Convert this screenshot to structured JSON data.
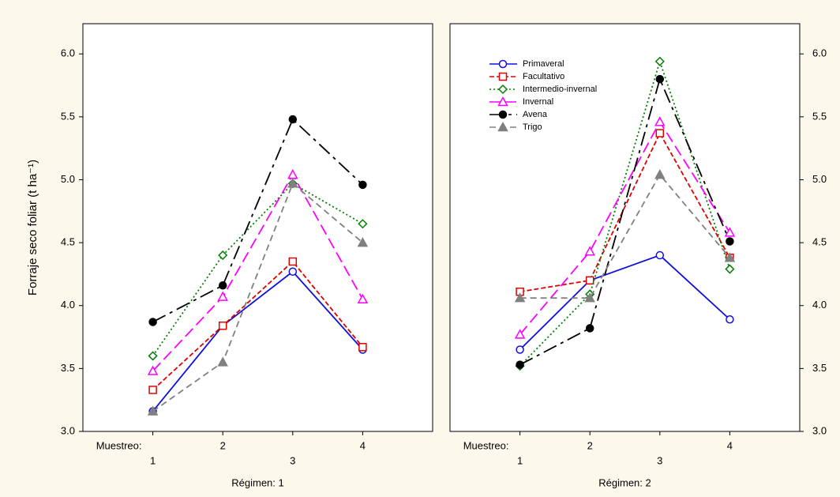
{
  "chart_data": [
    {
      "type": "line",
      "ylabel": "Forraje seco foliar  (t ha⁻¹)",
      "x_caption": "Muestreo:",
      "xlabel": "Régimen: 1",
      "x": [
        1,
        2,
        3,
        4
      ],
      "xlim": [
        0,
        5
      ],
      "xticks": [
        1,
        2,
        3,
        4
      ],
      "ylim": [
        3.0,
        6.24
      ],
      "yticks": [
        {
          "value": 3,
          "label": "3.0"
        },
        {
          "value": 3.5,
          "label": "3.5"
        },
        {
          "value": 4,
          "label": "4.0"
        },
        {
          "value": 4.5,
          "label": "4.5"
        },
        {
          "value": 5,
          "label": "5.0"
        },
        {
          "value": 5.5,
          "label": "5.5"
        },
        {
          "value": 6,
          "label": "6.0"
        }
      ],
      "yaxis_side": "left",
      "series": [
        {
          "color": "#1010e0",
          "marker": "circle-open",
          "dash": "solid",
          "values": [
            3.16,
            3.84,
            4.27,
            3.65
          ]
        },
        {
          "color": "#e00000",
          "marker": "square-open",
          "dash": "dashed",
          "values": [
            3.33,
            3.84,
            4.35,
            3.67
          ]
        },
        {
          "color": "#008000",
          "marker": "diamond-open",
          "dash": "dotted",
          "values": [
            3.6,
            4.4,
            4.97,
            4.65
          ]
        },
        {
          "color": "#ff00ff",
          "marker": "triangle-open",
          "dash": "long-dash",
          "values": [
            3.48,
            4.07,
            5.04,
            4.05
          ]
        },
        {
          "color": "#000000",
          "marker": "circle-filled",
          "dash": "dash-dot",
          "values": [
            3.87,
            4.16,
            5.48,
            4.96
          ]
        },
        {
          "color": "#808080",
          "marker": "triangle-filled",
          "dash": "medium-dash",
          "values": [
            3.16,
            3.55,
            4.97,
            4.5
          ]
        }
      ]
    },
    {
      "type": "line",
      "x_caption": "Muestreo:",
      "xlabel": "Régimen: 2",
      "x": [
        1,
        2,
        3,
        4
      ],
      "xlim": [
        0,
        5
      ],
      "xticks": [
        1,
        2,
        3,
        4
      ],
      "ylim": [
        3.0,
        6.24
      ],
      "yticks": [
        {
          "value": 3,
          "label": "3.0"
        },
        {
          "value": 3.5,
          "label": "3.5"
        },
        {
          "value": 4,
          "label": "4.0"
        },
        {
          "value": 4.5,
          "label": "4.5"
        },
        {
          "value": 5,
          "label": "5.0"
        },
        {
          "value": 5.5,
          "label": "5.5"
        },
        {
          "value": 6,
          "label": "6.0"
        }
      ],
      "yaxis_side": "right",
      "legend": "upper left",
      "series": [
        {
          "name": "Primaveral",
          "color": "#1010e0",
          "marker": "circle-open",
          "dash": "solid",
          "values": [
            3.65,
            4.2,
            4.4,
            3.89
          ]
        },
        {
          "name": "Facultativo",
          "color": "#e00000",
          "marker": "square-open",
          "dash": "dashed",
          "values": [
            4.11,
            4.2,
            5.37,
            4.38
          ]
        },
        {
          "name": "Intermedio-invernal",
          "color": "#008000",
          "marker": "diamond-open",
          "dash": "dotted",
          "values": [
            3.52,
            4.09,
            5.94,
            4.29
          ]
        },
        {
          "name": "Invernal",
          "color": "#ff00ff",
          "marker": "triangle-open",
          "dash": "long-dash",
          "values": [
            3.77,
            4.43,
            5.46,
            4.58
          ]
        },
        {
          "name": "Avena",
          "color": "#000000",
          "marker": "circle-filled",
          "dash": "dash-dot",
          "values": [
            3.53,
            3.82,
            5.8,
            4.51
          ]
        },
        {
          "name": "Trigo",
          "color": "#808080",
          "marker": "triangle-filled",
          "dash": "medium-dash",
          "values": [
            4.06,
            4.06,
            5.04,
            4.38
          ]
        }
      ]
    }
  ]
}
